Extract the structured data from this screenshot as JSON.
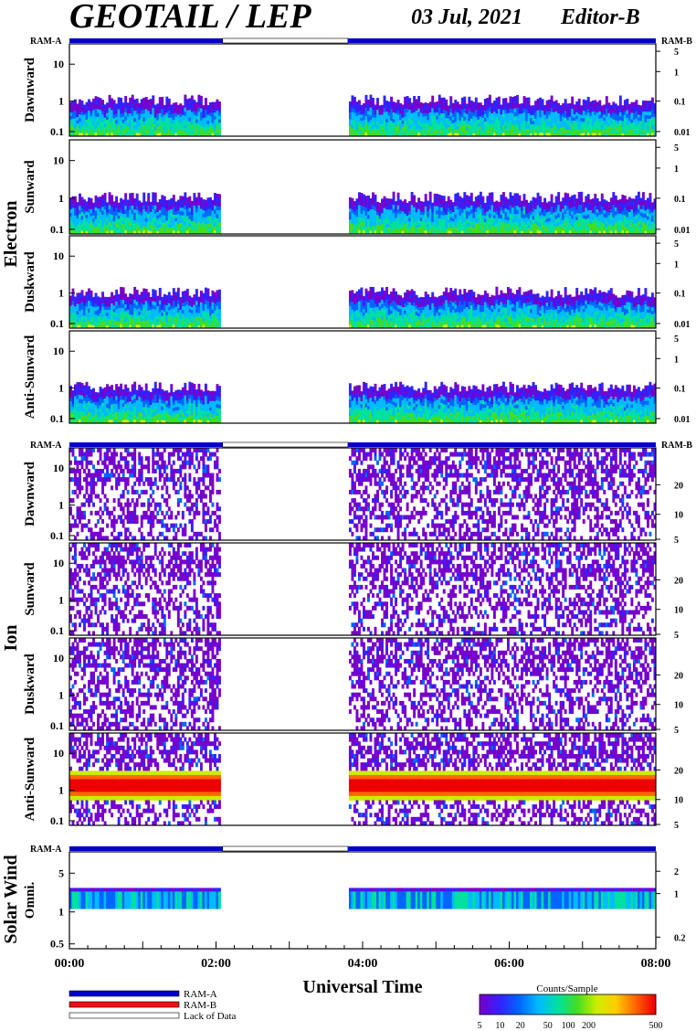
{
  "header": {
    "title": "GEOTAIL / LEP",
    "date": "03 Jul, 2021",
    "editor": "Editor-B"
  },
  "colors": {
    "ram_a": "#0000cc",
    "ram_b": "#ee1111",
    "lack_of_data": "#ffffff",
    "scale": [
      "#7700cc",
      "#3322ff",
      "#0066ff",
      "#00bbff",
      "#00e0a0",
      "#44dd22",
      "#ccee00",
      "#ffcc00",
      "#ff6600",
      "#ee0000"
    ]
  },
  "chart_data": [
    {
      "type": "heatmap",
      "group": "Electron",
      "panels": [
        "Dawnward",
        "Sunward",
        "Duskward",
        "Anti-Sunward"
      ],
      "left_ticks": [
        "10",
        "1",
        "0.1"
      ],
      "right_ticks": [
        "5",
        "1",
        "0.1",
        "0.01"
      ],
      "status_left": "RAM-A",
      "status_right": "RAM-B",
      "data_gaps_ut": [
        [
          "02:05",
          "03:48"
        ]
      ]
    },
    {
      "type": "heatmap",
      "group": "Ion",
      "panels": [
        "Dawnward",
        "Sunward",
        "Duskward",
        "Anti-Sunward"
      ],
      "left_ticks": [
        "10",
        "1",
        "0.1"
      ],
      "right_ticks": [
        "20",
        "10",
        "5"
      ],
      "status_left": "RAM-A",
      "status_right": "RAM-B",
      "data_gaps_ut": [
        [
          "02:05",
          "03:48"
        ]
      ]
    },
    {
      "type": "heatmap",
      "group": "Solar Wind",
      "panels": [
        "Omni."
      ],
      "left_ticks": [
        "5",
        "1",
        "0.5"
      ],
      "right_ticks": [
        "2",
        "1",
        "0.2"
      ],
      "status_left": "RAM-A",
      "data_gaps_ut": [
        [
          "02:05",
          "03:48"
        ]
      ]
    }
  ],
  "xaxis": {
    "label": "Universal Time",
    "ticks": [
      "00:00",
      "02:00",
      "04:00",
      "06:00",
      "08:00"
    ]
  },
  "legend": {
    "ram_a": "RAM-A",
    "ram_b": "RAM-B",
    "lack": "Lack of Data"
  },
  "colorbar": {
    "title": "Counts/Sample",
    "ticks": [
      "5",
      "10",
      "20",
      "50",
      "100",
      "200",
      "500"
    ]
  }
}
